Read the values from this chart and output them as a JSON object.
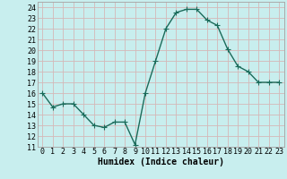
{
  "x": [
    0,
    1,
    2,
    3,
    4,
    5,
    6,
    7,
    8,
    9,
    10,
    11,
    12,
    13,
    14,
    15,
    16,
    17,
    18,
    19,
    20,
    21,
    22,
    23
  ],
  "y": [
    16.0,
    14.7,
    15.0,
    15.0,
    14.0,
    13.0,
    12.8,
    13.3,
    13.3,
    11.2,
    16.0,
    19.0,
    22.0,
    23.5,
    23.8,
    23.8,
    22.8,
    22.3,
    20.1,
    18.5,
    18.0,
    17.0,
    17.0,
    17.0
  ],
  "line_color": "#1a6b5a",
  "marker_color": "#1a6b5a",
  "bg_color": "#c8eeee",
  "grid_color": "#d4b8b8",
  "xlabel": "Humidex (Indice chaleur)",
  "ylim": [
    11,
    24.5
  ],
  "xlim": [
    -0.5,
    23.5
  ],
  "yticks": [
    11,
    12,
    13,
    14,
    15,
    16,
    17,
    18,
    19,
    20,
    21,
    22,
    23,
    24
  ],
  "xticks": [
    0,
    1,
    2,
    3,
    4,
    5,
    6,
    7,
    8,
    9,
    10,
    11,
    12,
    13,
    14,
    15,
    16,
    17,
    18,
    19,
    20,
    21,
    22,
    23
  ],
  "xlabel_fontsize": 7.0,
  "tick_fontsize": 6.0,
  "linewidth": 1.0,
  "markersize": 2.0,
  "spine_color": "#aaaaaa"
}
